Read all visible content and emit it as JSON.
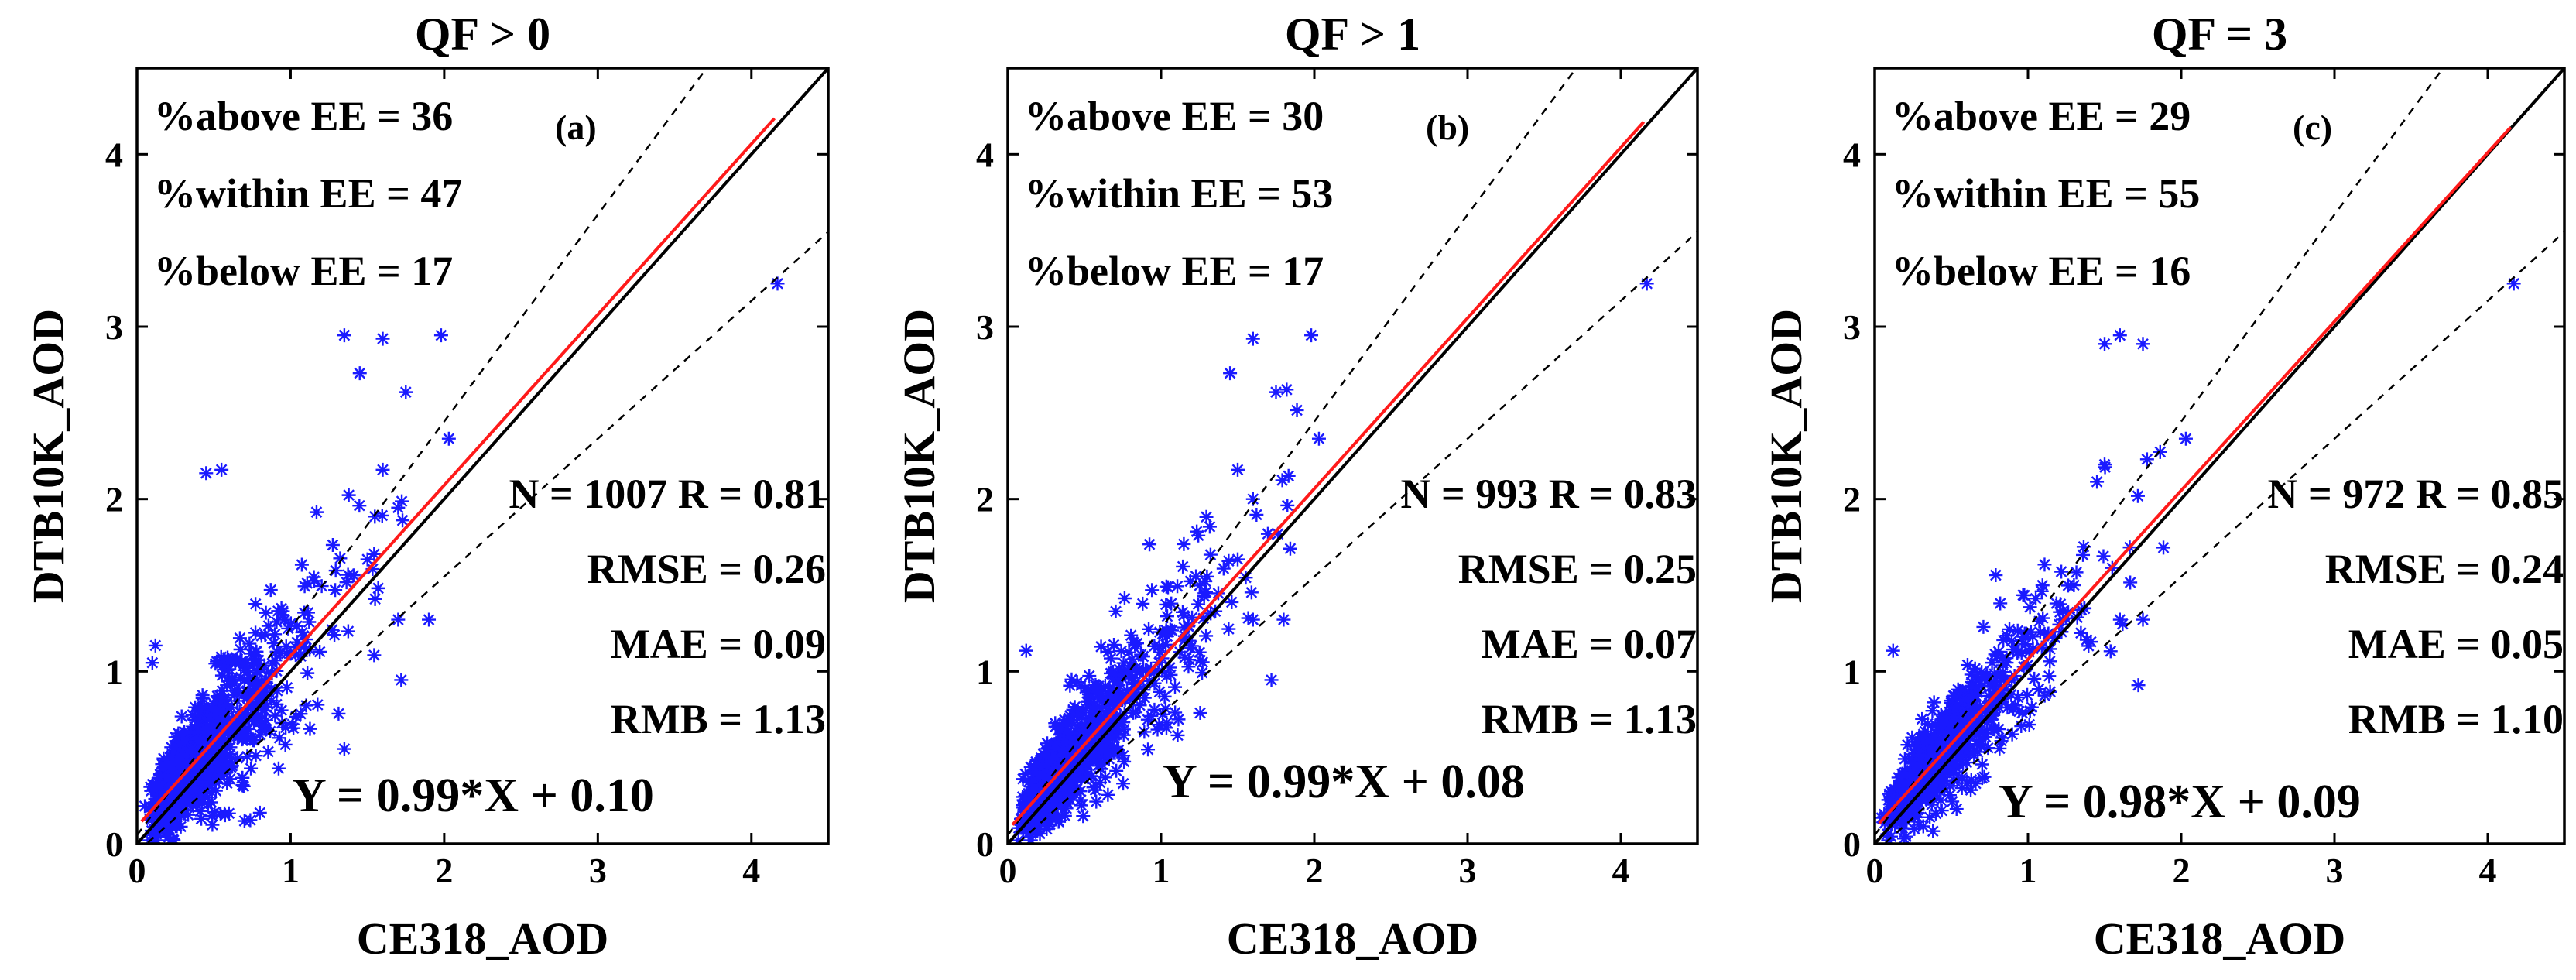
{
  "chart_data": [
    {
      "type": "scatter",
      "title": "QF > 0",
      "panel_label": "(a)",
      "xlabel": "CE318_AOD",
      "ylabel": "DTB10K_AOD",
      "xlim": [
        0,
        4.5
      ],
      "ylim": [
        0,
        4.5
      ],
      "xticks": [
        "0",
        "1",
        "2",
        "3",
        "4"
      ],
      "yticks": [
        "0",
        "1",
        "2",
        "3",
        "4"
      ],
      "stats_top": [
        "%above EE = 36",
        "%within EE = 47",
        "%below EE = 17"
      ],
      "stats_right": [
        "N = 1007 R = 0.81",
        "RMSE = 0.26",
        "MAE = 0.09",
        "RMB = 1.13"
      ],
      "equation": "Y = 0.99*X + 0.10",
      "fit": {
        "slope": 0.99,
        "intercept": 0.1,
        "x_range": [
          0.03,
          4.15
        ]
      },
      "one_to_one": [
        0,
        4.5
      ],
      "ee_envelope": {
        "offset": 0.05,
        "fraction": 0.2
      },
      "n": 1007,
      "outliers": [
        [
          1.35,
          2.95
        ],
        [
          1.6,
          2.93
        ],
        [
          1.98,
          2.95
        ],
        [
          1.45,
          2.73
        ],
        [
          1.75,
          2.62
        ],
        [
          2.03,
          2.35
        ],
        [
          4.17,
          3.25
        ],
        [
          0.45,
          2.15
        ],
        [
          0.55,
          2.17
        ],
        [
          1.6,
          2.17
        ],
        [
          1.7,
          1.95
        ],
        [
          0.12,
          1.15
        ],
        [
          0.1,
          1.05
        ],
        [
          1.5,
          1.65
        ],
        [
          1.7,
          1.3
        ],
        [
          1.9,
          1.3
        ],
        [
          1.72,
          0.95
        ],
        [
          0.8,
          0.18
        ],
        [
          1.35,
          0.55
        ],
        [
          1.55,
          1.42
        ]
      ]
    },
    {
      "type": "scatter",
      "title": "QF > 1",
      "panel_label": "(b)",
      "xlabel": "CE318_AOD",
      "ylabel": "DTB10K_AOD",
      "xlim": [
        0,
        4.5
      ],
      "ylim": [
        0,
        4.5
      ],
      "xticks": [
        "0",
        "1",
        "2",
        "3",
        "4"
      ],
      "yticks": [
        "0",
        "1",
        "2",
        "3",
        "4"
      ],
      "stats_top": [
        "%above EE = 30",
        "%within EE = 53",
        "%below EE = 17"
      ],
      "stats_right": [
        "N = 993 R = 0.83",
        "RMSE = 0.25",
        "MAE = 0.07",
        "RMB = 1.13"
      ],
      "equation": "Y = 0.99*X + 0.08",
      "fit": {
        "slope": 0.99,
        "intercept": 0.08,
        "x_range": [
          0.03,
          4.15
        ]
      },
      "one_to_one": [
        0,
        4.5
      ],
      "ee_envelope": {
        "offset": 0.05,
        "fraction": 0.2
      },
      "n": 993,
      "outliers": [
        [
          1.6,
          2.93
        ],
        [
          1.98,
          2.95
        ],
        [
          1.45,
          2.73
        ],
        [
          1.75,
          2.62
        ],
        [
          2.03,
          2.35
        ],
        [
          4.17,
          3.25
        ],
        [
          1.5,
          2.17
        ],
        [
          1.6,
          2.0
        ],
        [
          0.12,
          1.12
        ],
        [
          1.8,
          1.3
        ],
        [
          1.72,
          0.95
        ],
        [
          1.6,
          1.3
        ],
        [
          1.5,
          1.65
        ],
        [
          1.3,
          1.55
        ]
      ]
    },
    {
      "type": "scatter",
      "title": "QF = 3",
      "panel_label": "(c)",
      "xlabel": "CE318_AOD",
      "ylabel": "DTB10K_AOD",
      "xlim": [
        0,
        4.5
      ],
      "ylim": [
        0,
        4.5
      ],
      "xticks": [
        "0",
        "1",
        "2",
        "3",
        "4"
      ],
      "yticks": [
        "0",
        "1",
        "2",
        "3",
        "4"
      ],
      "stats_top": [
        "%above EE  = 29",
        "%within EE = 55",
        "%below EE = 16"
      ],
      "stats_right": [
        "N = 972 R = 0.85",
        "RMSE = 0.24",
        "MAE = 0.05",
        "RMB = 1.10"
      ],
      "equation": "Y = 0.98*X + 0.09",
      "fit": {
        "slope": 0.98,
        "intercept": 0.09,
        "x_range": [
          0.03,
          4.15
        ]
      },
      "one_to_one": [
        0,
        4.5
      ],
      "ee_envelope": {
        "offset": 0.05,
        "fraction": 0.2
      },
      "n": 972,
      "outliers": [
        [
          1.5,
          2.9
        ],
        [
          1.6,
          2.95
        ],
        [
          1.75,
          2.9
        ],
        [
          2.03,
          2.35
        ],
        [
          4.17,
          3.25
        ],
        [
          1.5,
          2.2
        ],
        [
          1.45,
          2.1
        ],
        [
          0.12,
          1.12
        ],
        [
          1.72,
          0.92
        ],
        [
          1.6,
          1.3
        ],
        [
          1.75,
          1.3
        ],
        [
          1.55,
          1.6
        ],
        [
          1.3,
          1.5
        ]
      ]
    }
  ]
}
